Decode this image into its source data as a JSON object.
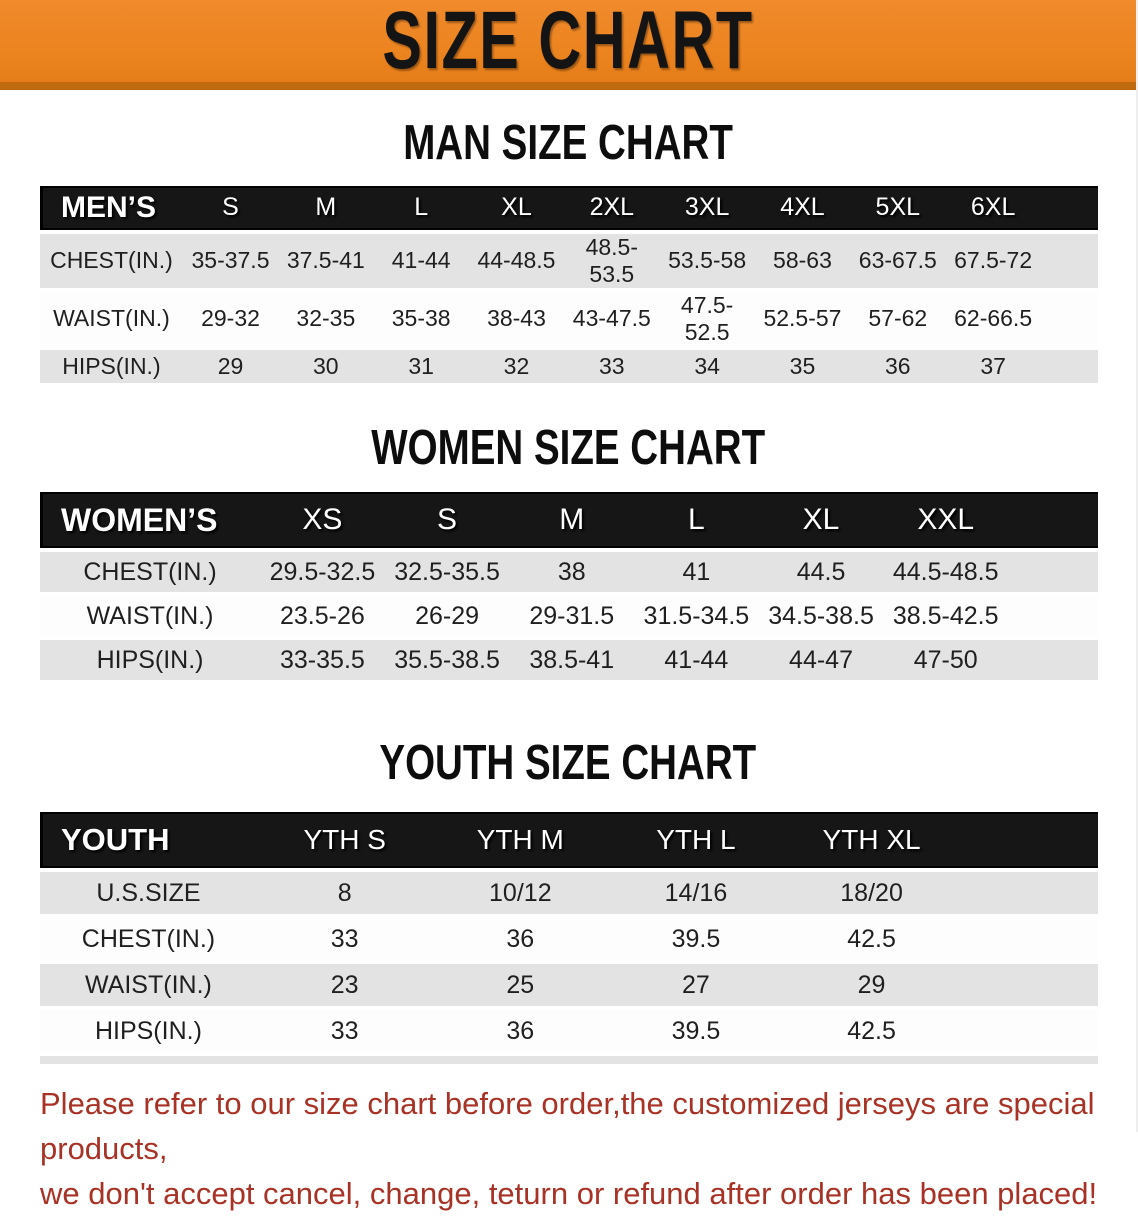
{
  "banner": {
    "title": "SIZE CHART"
  },
  "sections": [
    {
      "heading": "MAN SIZE CHART",
      "header_label": "MEN’S",
      "columns": [
        "S",
        "M",
        "L",
        "XL",
        "2XL",
        "3XL",
        "4XL",
        "5XL",
        "6XL"
      ],
      "rows": [
        {
          "label": "CHEST(IN.)",
          "values": [
            "35-37.5",
            "37.5-41",
            "41-44",
            "44-48.5",
            "48.5-53.5",
            "53.5-58",
            "58-63",
            "63-67.5",
            "67.5-72"
          ]
        },
        {
          "label": "WAIST(IN.)",
          "values": [
            "29-32",
            "32-35",
            "35-38",
            "38-43",
            "43-47.5",
            "47.5-52.5",
            "52.5-57",
            "57-62",
            "62-66.5"
          ]
        },
        {
          "label": "HIPS(IN.)",
          "values": [
            "29",
            "30",
            "31",
            "32",
            "33",
            "34",
            "35",
            "36",
            "37"
          ]
        }
      ]
    },
    {
      "heading": "WOMEN SIZE CHART",
      "header_label": "WOMEN’S",
      "columns": [
        "XS",
        "S",
        "M",
        "L",
        "XL",
        "XXL"
      ],
      "rows": [
        {
          "label": "CHEST(IN.)",
          "values": [
            "29.5-32.5",
            "32.5-35.5",
            "38",
            "41",
            "44.5",
            "44.5-48.5"
          ]
        },
        {
          "label": "WAIST(IN.)",
          "values": [
            "23.5-26",
            "26-29",
            "29-31.5",
            "31.5-34.5",
            "34.5-38.5",
            "38.5-42.5"
          ]
        },
        {
          "label": "HIPS(IN.)",
          "values": [
            "33-35.5",
            "35.5-38.5",
            "38.5-41",
            "41-44",
            "44-47",
            "47-50"
          ]
        }
      ]
    },
    {
      "heading": "YOUTH SIZE CHART",
      "header_label": "YOUTH",
      "columns": [
        "YTH S",
        "YTH M",
        "YTH L",
        "YTH XL"
      ],
      "rows": [
        {
          "label": "U.S.SIZE",
          "values": [
            "8",
            "10/12",
            "14/16",
            "18/20"
          ]
        },
        {
          "label": "CHEST(IN.)",
          "values": [
            "33",
            "36",
            "39.5",
            "42.5"
          ]
        },
        {
          "label": "WAIST(IN.)",
          "values": [
            "23",
            "25",
            "27",
            "29"
          ]
        },
        {
          "label": "HIPS(IN.)",
          "values": [
            "33",
            "36",
            "39.5",
            "42.5"
          ]
        }
      ]
    }
  ],
  "disclaimer": {
    "line1": "Please refer to our size chart before order,the customized jerseys are special products,",
    "line2": "we don't accept cancel, change, teturn or refund after order has been placed!"
  },
  "colors": {
    "banner_orange": "#EC8420",
    "banner_bottom_edge": "#C06A10",
    "table_header_black": "#161616",
    "row_band_gray": "#E3E3E3",
    "disclaimer_red": "#A93226",
    "title_text": "#141414"
  }
}
